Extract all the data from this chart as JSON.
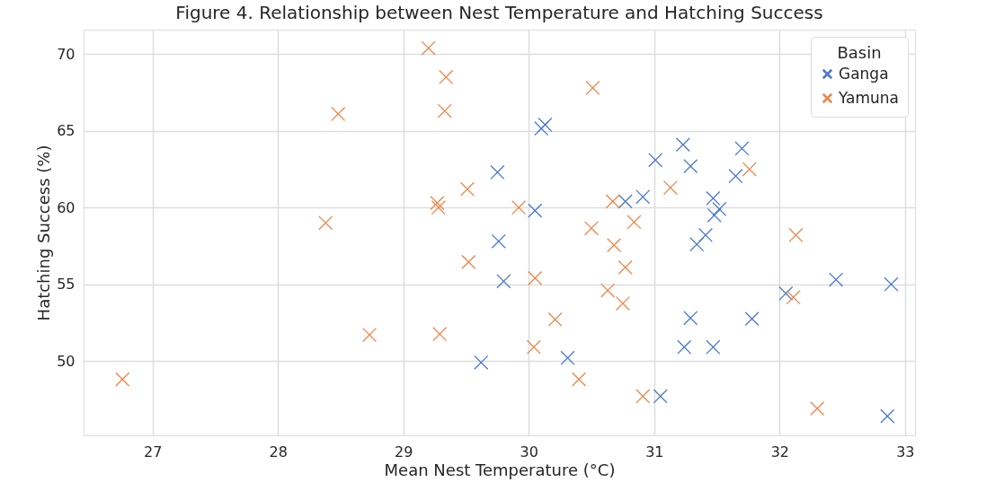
{
  "chart_data": {
    "type": "scatter",
    "title": "Figure 4. Relationship between Nest Temperature and Hatching Success",
    "xlabel": "Mean Nest Temperature (°C)",
    "ylabel": "Hatching Success (%)",
    "legend_title": "Basin",
    "legend": "top right",
    "grid": true,
    "marker": "cross",
    "xlim": [
      26.45,
      33.08
    ],
    "xticks": [
      27,
      28,
      29,
      30,
      31,
      32,
      33
    ],
    "ylim": [
      45.15,
      71.6
    ],
    "yticks": [
      50,
      55,
      60,
      65,
      70
    ],
    "series": [
      {
        "name": "Ganga",
        "color": "#4878d0",
        "x": [
          30.1,
          30.13,
          31.23,
          31.7,
          31.01,
          31.29,
          31.65,
          31.47,
          30.91,
          30.77,
          30.05,
          31.52,
          31.48,
          29.75,
          31.41,
          31.34,
          29.8,
          29.76,
          29.62,
          30.31,
          31.05,
          31.29,
          31.24,
          31.47,
          31.78,
          32.05,
          32.45,
          32.89,
          32.86
        ],
        "values": [
          65.15,
          65.4,
          64.1,
          63.85,
          63.1,
          62.7,
          62.05,
          60.6,
          60.7,
          60.4,
          59.8,
          59.9,
          59.5,
          62.3,
          58.2,
          57.6,
          55.2,
          57.8,
          49.9,
          50.2,
          47.7,
          52.8,
          50.9,
          50.9,
          52.75,
          54.4,
          55.3,
          55.0,
          46.4
        ]
      },
      {
        "name": "Yamuna",
        "color": "#ee854a",
        "x": [
          29.2,
          29.34,
          29.33,
          28.48,
          29.51,
          29.27,
          29.28,
          28.38,
          29.92,
          30.51,
          31.76,
          31.13,
          30.67,
          30.84,
          30.5,
          30.68,
          32.13,
          30.05,
          30.77,
          30.63,
          30.75,
          30.21,
          30.04,
          32.11,
          30.4,
          30.91,
          32.3,
          29.52,
          28.73,
          29.29,
          26.76
        ],
        "values": [
          70.4,
          68.5,
          66.3,
          66.1,
          61.2,
          60.3,
          60.0,
          59.0,
          60.0,
          67.8,
          62.5,
          61.3,
          60.4,
          59.05,
          58.65,
          57.55,
          58.2,
          55.4,
          56.1,
          54.6,
          53.75,
          52.7,
          50.9,
          54.15,
          48.8,
          47.7,
          46.9,
          56.45,
          51.7,
          51.75,
          48.8
        ]
      }
    ]
  }
}
